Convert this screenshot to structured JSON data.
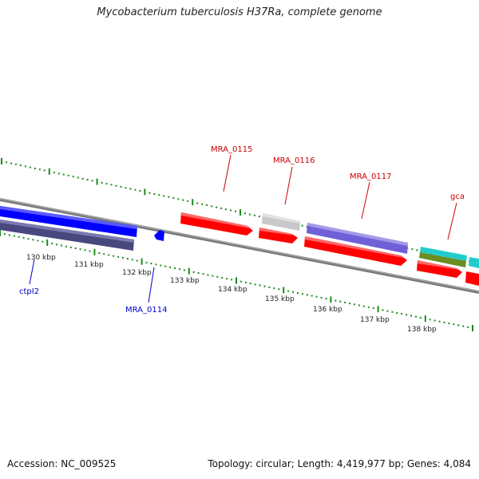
{
  "title": "Mycobacterium tuberculosis H37Ra, complete genome",
  "footer": {
    "accession": "Accession: NC_009525",
    "summary": "Topology: circular; Length: 4,419,977 bp; Genes: 4,084"
  },
  "ticks": {
    "labels": [
      "130 kbp",
      "131 kbp",
      "132 kbp",
      "133 kbp",
      "134 kbp",
      "135 kbp",
      "136 kbp",
      "137 kbp",
      "138 kbp"
    ]
  },
  "genes": [
    {
      "name": "ctpI2",
      "strand": "minus",
      "color": "#0000cc"
    },
    {
      "name": "MRA_0114",
      "strand": "minus",
      "color": "#0000cc"
    },
    {
      "name": "MRA_0115",
      "strand": "plus",
      "color": "#cc0000"
    },
    {
      "name": "MRA_0116",
      "strand": "plus",
      "color": "#cc0000"
    },
    {
      "name": "MRA_0117",
      "strand": "plus",
      "color": "#cc0000"
    },
    {
      "name": "gca",
      "strand": "plus",
      "color": "#cc0000"
    }
  ],
  "colors": {
    "backbone": "#808080",
    "tick": "#1e8a1e",
    "cds_red": "#ff0000",
    "cds_blue": "#0000ff",
    "cds_navy": "#4b4b8f",
    "cds_grey": "#c8c8c8",
    "cds_purple": "#7a6fd6",
    "cds_cyan": "#22cccc",
    "cds_olive": "#6b8e23"
  }
}
